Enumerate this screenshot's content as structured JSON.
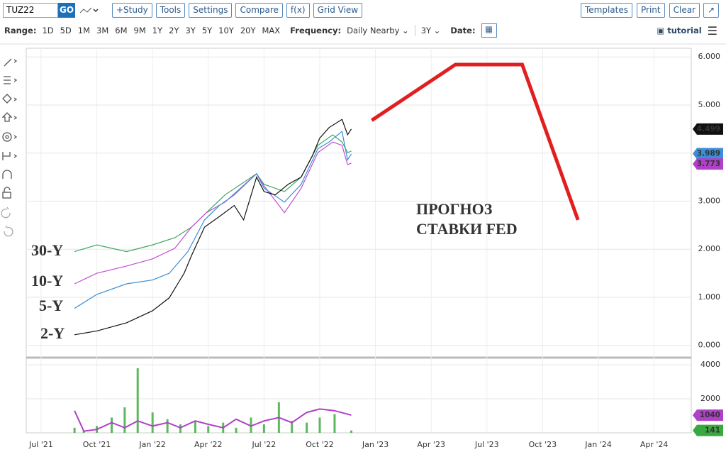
{
  "toolbar": {
    "symbol": "TUZ22",
    "go": "GO",
    "buttons": [
      "+Study",
      "Tools",
      "Settings",
      "Compare",
      "f(x)",
      "Grid View"
    ],
    "right_buttons": [
      "Templates",
      "Print",
      "Clear"
    ]
  },
  "range_bar": {
    "label": "Range:",
    "ranges": [
      "1D",
      "5D",
      "1M",
      "3M",
      "6M",
      "9M",
      "1Y",
      "2Y",
      "3Y",
      "5Y",
      "10Y",
      "20Y",
      "MAX"
    ],
    "frequency_label": "Frequency:",
    "frequency": "Daily Nearby",
    "period": "3Y",
    "date_label": "Date:",
    "tutorial": "tutorial"
  },
  "chart_data": [
    {
      "type": "line",
      "annotation": [
        "ПРОГНОЗ",
        "СТАВКИ FED"
      ],
      "xlim": [
        -0.8,
        35
      ],
      "xticks": [
        {
          "value": 0,
          "label": "Jul '21"
        },
        {
          "value": 3,
          "label": "Oct '21"
        },
        {
          "value": 6,
          "label": "Jan '22"
        },
        {
          "value": 9,
          "label": "Apr '22"
        },
        {
          "value": 12,
          "label": "Jul '22"
        },
        {
          "value": 15,
          "label": "Oct '22"
        },
        {
          "value": 18,
          "label": "Jan '23"
        },
        {
          "value": 21,
          "label": "Apr '23"
        },
        {
          "value": 24,
          "label": "Jul '23"
        },
        {
          "value": 27,
          "label": "Oct '23"
        },
        {
          "value": 30,
          "label": "Jan '24"
        },
        {
          "value": 33,
          "label": "Apr '24"
        }
      ],
      "ylim": [
        -0.24,
        6.18
      ],
      "yticks": [
        {
          "value": 0,
          "label": "0.000"
        },
        {
          "value": 1,
          "label": "1.000"
        },
        {
          "value": 2,
          "label": "2.000"
        },
        {
          "value": 3,
          "label": "3.000"
        },
        {
          "value": 4,
          "label": "4.000"
        },
        {
          "value": 5,
          "label": "5.000"
        },
        {
          "value": 6,
          "label": "6.000"
        }
      ],
      "grid": true,
      "series": [
        {
          "name": "30-Y",
          "color": "#3aa860",
          "x": [
            1.8,
            3.0,
            4.6,
            6.0,
            7.2,
            8.1,
            8.9,
            9.9,
            11.6,
            12.0,
            13.1,
            14.0,
            14.9,
            15.7,
            16.2,
            16.5,
            16.7
          ],
          "values": [
            1.95,
            2.09,
            1.95,
            2.09,
            2.24,
            2.46,
            2.76,
            3.13,
            3.57,
            3.35,
            3.2,
            3.5,
            4.16,
            4.38,
            4.23,
            4.01,
            4.04
          ]
        },
        {
          "name": "10-Y",
          "color": "#c04fd0",
          "x": [
            1.8,
            3.0,
            4.6,
            6.0,
            7.2,
            8.1,
            8.9,
            9.9,
            11.6,
            12.0,
            13.1,
            14.0,
            14.9,
            15.7,
            16.2,
            16.5,
            16.7
          ],
          "values": [
            1.28,
            1.5,
            1.65,
            1.8,
            2.02,
            2.46,
            2.76,
            2.98,
            3.57,
            3.32,
            2.76,
            3.27,
            4.01,
            4.23,
            4.16,
            3.76,
            3.79
          ]
        },
        {
          "name": "5-Y",
          "color": "#3a8fd8",
          "x": [
            1.8,
            3.0,
            4.6,
            6.0,
            6.9,
            7.9,
            8.8,
            9.6,
            10.4,
            11.6,
            12.0,
            13.1,
            14.0,
            14.9,
            15.5,
            16.2,
            16.5,
            16.7
          ],
          "values": [
            0.77,
            1.06,
            1.28,
            1.36,
            1.5,
            1.95,
            2.61,
            2.91,
            3.13,
            3.57,
            3.27,
            2.98,
            3.35,
            4.09,
            4.23,
            4.45,
            3.86,
            3.98
          ]
        },
        {
          "name": "2-Y",
          "color": "#111111",
          "x": [
            1.8,
            3.0,
            4.6,
            6.0,
            6.9,
            7.7,
            8.1,
            8.8,
            9.6,
            10.4,
            10.9,
            11.6,
            12.0,
            12.6,
            13.3,
            14.0,
            14.6,
            15.0,
            15.5,
            16.2,
            16.5,
            16.7
          ],
          "values": [
            0.22,
            0.3,
            0.47,
            0.72,
            0.99,
            1.5,
            1.87,
            2.46,
            2.68,
            2.91,
            2.61,
            3.5,
            3.2,
            3.13,
            3.35,
            3.5,
            3.94,
            4.31,
            4.53,
            4.7,
            4.38,
            4.5
          ]
        },
        {
          "color": "#e02020",
          "x": [
            17.8,
            22.3,
            25.9,
            28.9
          ],
          "values": [
            4.68,
            5.84,
            5.84,
            2.61
          ]
        }
      ],
      "badges": [
        {
          "value": 4.499,
          "color": "#111111"
        },
        {
          "value": 3.989,
          "color": "#3a8fd8"
        },
        {
          "value": 3.773,
          "color": "#b040c8"
        }
      ]
    },
    {
      "type": "bar",
      "color": "#5cb85c",
      "xlim": [
        -0.8,
        35
      ],
      "x": [
        1.8,
        2.3,
        3.0,
        3.8,
        4.5,
        5.2,
        6.0,
        6.8,
        7.5,
        8.3,
        9.0,
        9.8,
        10.5,
        11.3,
        12.0,
        12.8,
        13.5,
        14.3,
        15.0,
        15.8,
        16.7
      ],
      "values": [
        300,
        100,
        400,
        900,
        1500,
        3800,
        1200,
        800,
        500,
        700,
        400,
        600,
        300,
        900,
        500,
        1800,
        700,
        600,
        900,
        1100,
        141
      ],
      "line": {
        "color": "#b040c8",
        "values": [
          1300,
          100,
          200,
          600,
          300,
          700,
          400,
          600,
          300,
          700,
          500,
          300,
          800,
          400,
          700,
          900,
          600,
          1200,
          1400,
          1300,
          1040
        ]
      },
      "ylim": [
        0,
        4380
      ],
      "yticks": [
        2000,
        4000
      ],
      "badges": [
        {
          "value": 1040,
          "color": "#b040c8"
        },
        {
          "value": 141,
          "color": "#3aa840"
        }
      ]
    }
  ]
}
